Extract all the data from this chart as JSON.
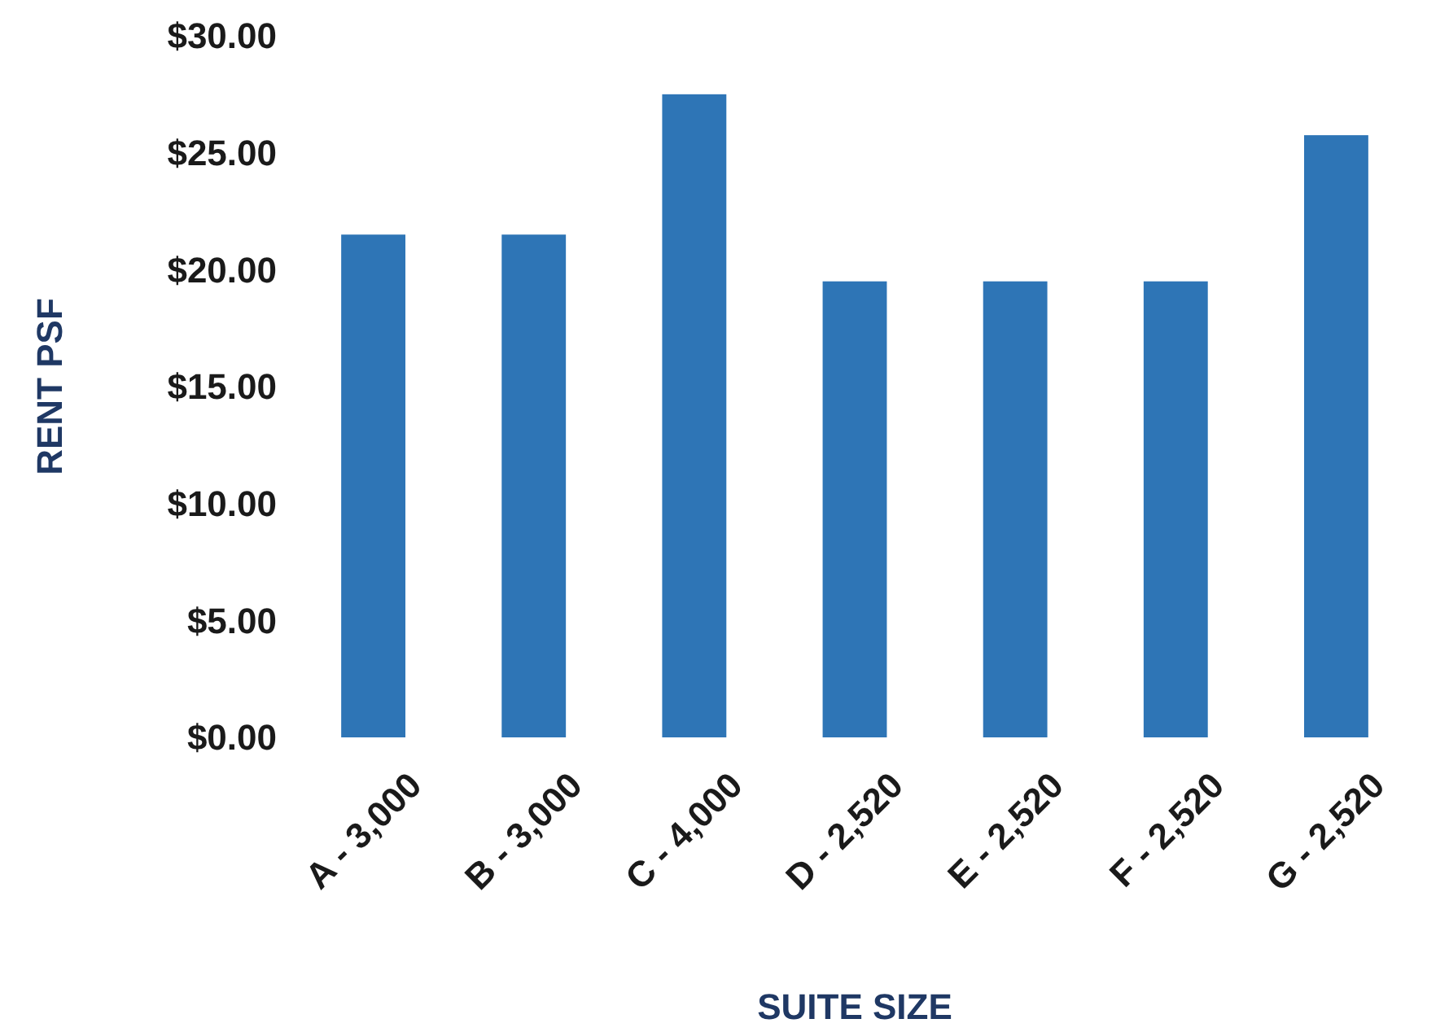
{
  "chart_data": {
    "type": "bar",
    "xlabel": "SUITE SIZE",
    "ylabel": "RENT PSF",
    "categories": [
      "A - 3,000",
      "B - 3,000",
      "C - 4,000",
      "D - 2,520",
      "E - 2,520",
      "F - 2,520",
      "G - 2,520"
    ],
    "values": [
      21.5,
      21.5,
      27.5,
      19.5,
      19.5,
      19.5,
      25.75
    ],
    "color": "#2e75b6",
    "ylim": [
      0,
      30
    ],
    "yticks": [
      {
        "value": 0,
        "label": "$0.00"
      },
      {
        "value": 5,
        "label": "$5.00"
      },
      {
        "value": 10,
        "label": "$10.00"
      },
      {
        "value": 15,
        "label": "$15.00"
      },
      {
        "value": 20,
        "label": "$20.00"
      },
      {
        "value": 25,
        "label": "$25.00"
      },
      {
        "value": 30,
        "label": "$30.00"
      }
    ],
    "grid": false
  }
}
